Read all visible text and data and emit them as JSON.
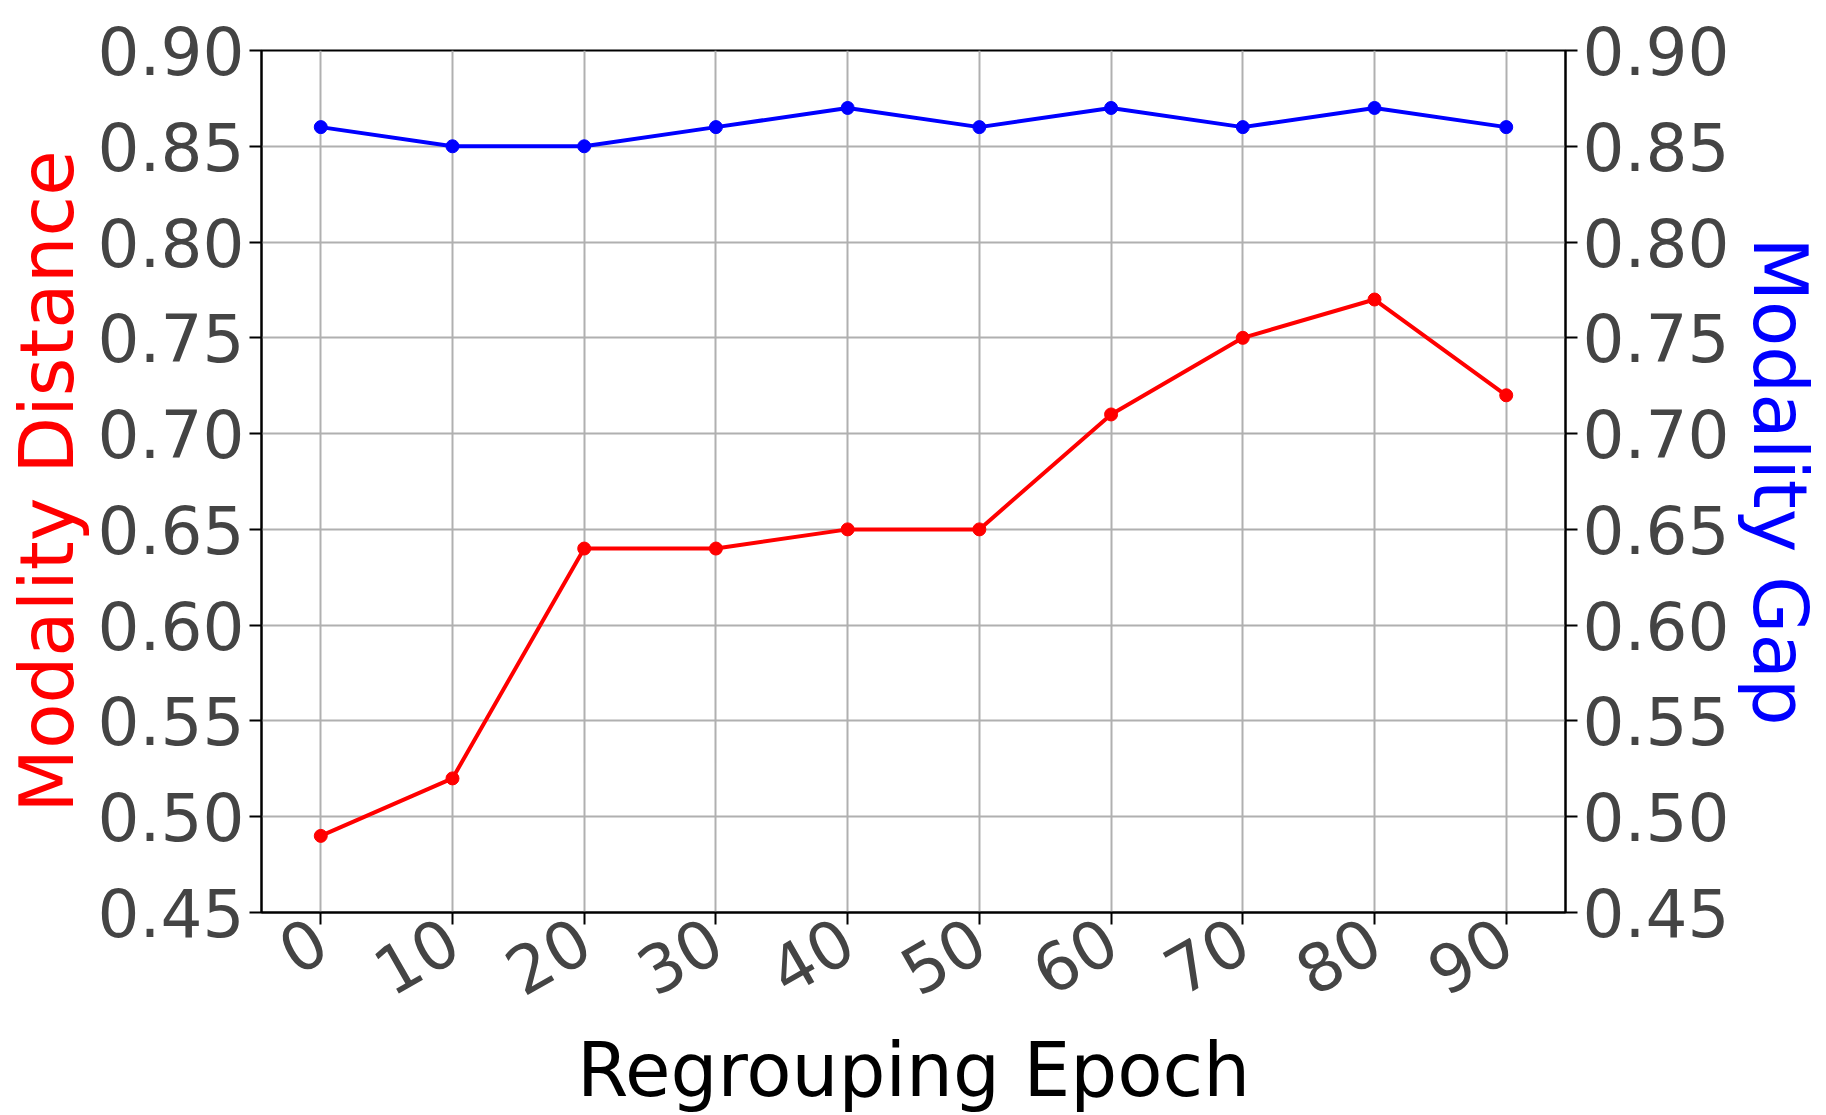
{
  "chart_data": {
    "type": "line",
    "xlabel": "Regrouping Epoch",
    "ylabel": "Modality Distance",
    "y2label": "Modality Gap",
    "x": [
      0,
      10,
      20,
      30,
      40,
      50,
      60,
      70,
      80,
      90
    ],
    "series": [
      {
        "color": "#ff0000",
        "values": [
          0.49,
          0.52,
          0.64,
          0.64,
          0.65,
          0.65,
          0.71,
          0.75,
          0.77,
          0.72
        ]
      },
      {
        "color": "#0000ff",
        "axis": "y2",
        "values": [
          0.86,
          0.85,
          0.85,
          0.86,
          0.87,
          0.86,
          0.87,
          0.86,
          0.87,
          0.86
        ]
      }
    ],
    "xlim": [
      -4.5,
      94.5
    ],
    "xticks": [
      0,
      10,
      20,
      30,
      40,
      50,
      60,
      70,
      80,
      90
    ],
    "ylim": [
      0.45,
      0.9
    ],
    "yticks": [
      {
        "value": 0.45,
        "label": "0.45"
      },
      {
        "value": 0.5,
        "label": "0.50"
      },
      {
        "value": 0.55,
        "label": "0.55"
      },
      {
        "value": 0.6,
        "label": "0.60"
      },
      {
        "value": 0.65,
        "label": "0.65"
      },
      {
        "value": 0.7,
        "label": "0.70"
      },
      {
        "value": 0.75,
        "label": "0.75"
      },
      {
        "value": 0.8,
        "label": "0.80"
      },
      {
        "value": 0.85,
        "label": "0.85"
      },
      {
        "value": 0.9,
        "label": "0.90"
      }
    ],
    "y2lim": [
      0.45,
      0.9
    ],
    "y2ticks": [
      {
        "value": 0.45,
        "label": "0.45"
      },
      {
        "value": 0.5,
        "label": "0.50"
      },
      {
        "value": 0.55,
        "label": "0.55"
      },
      {
        "value": 0.6,
        "label": "0.60"
      },
      {
        "value": 0.65,
        "label": "0.65"
      },
      {
        "value": 0.7,
        "label": "0.70"
      },
      {
        "value": 0.75,
        "label": "0.75"
      },
      {
        "value": 0.8,
        "label": "0.80"
      },
      {
        "value": 0.85,
        "label": "0.85"
      },
      {
        "value": 0.9,
        "label": "0.90"
      }
    ],
    "grid": true,
    "marker": "circle",
    "line_style": "solid"
  }
}
